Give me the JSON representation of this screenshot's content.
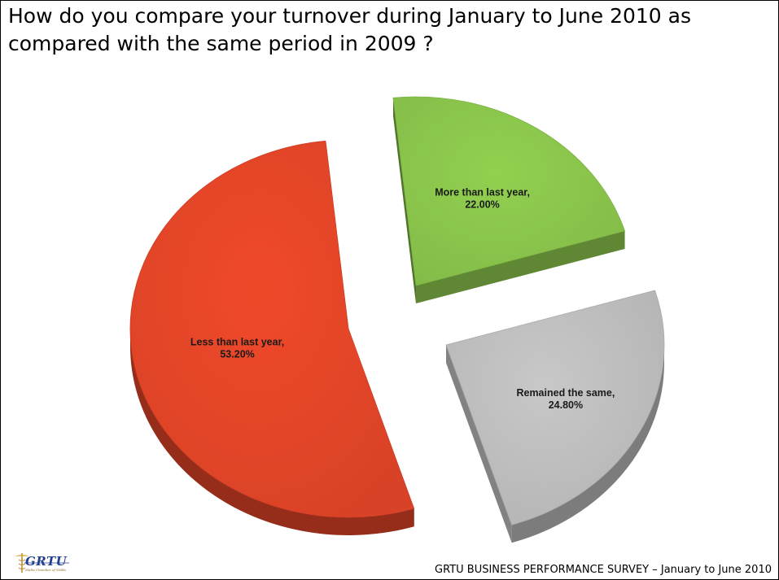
{
  "slide": {
    "title": "How do you compare your turnover during January to June 2010 as compared with the same period in 2009 ?",
    "footer": "GRTU BUSINESS PERFORMANCE SURVEY – January to June 2010",
    "logo": {
      "text": "GRTU",
      "subtitle": "Malta Chamber of SMEs"
    }
  },
  "chart_data": {
    "type": "pie",
    "title": "",
    "style": "3d-exploded",
    "slices": [
      {
        "label": "More than last year,",
        "value": 22.0,
        "value_label": "22.00%",
        "color": "#92d050"
      },
      {
        "label": "Remained the same,",
        "value": 24.8,
        "value_label": "24.80%",
        "color": "#c8c8c8"
      },
      {
        "label": "Less than last year,",
        "value": 53.2,
        "value_label": "53.20%",
        "color": "#f0492a"
      }
    ]
  }
}
